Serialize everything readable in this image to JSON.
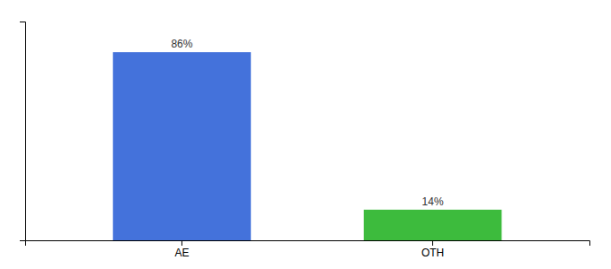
{
  "chart_data": {
    "type": "bar",
    "categories": [
      "AE",
      "OTH"
    ],
    "values": [
      86,
      14
    ],
    "value_labels": [
      "86%",
      "14%"
    ],
    "colors": [
      "#4472db",
      "#3dbb3d"
    ],
    "ylim": [
      0,
      100
    ],
    "data_labels": true,
    "tick_labels": "x",
    "grid": false
  }
}
